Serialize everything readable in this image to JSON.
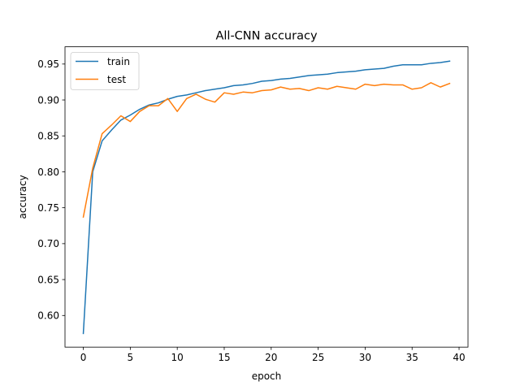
{
  "chart_data": {
    "type": "line",
    "title": "All-CNN accuracy",
    "xlabel": "epoch",
    "ylabel": "accuracy",
    "xlim": [
      -1.95,
      40.95
    ],
    "ylim": [
      0.556,
      0.974
    ],
    "xticks": [
      0,
      5,
      10,
      15,
      20,
      25,
      30,
      35,
      40
    ],
    "yticks": [
      0.6,
      0.65,
      0.7,
      0.75,
      0.8,
      0.85,
      0.9,
      0.95
    ],
    "ytick_labels": [
      "0.60",
      "0.65",
      "0.70",
      "0.75",
      "0.80",
      "0.85",
      "0.90",
      "0.95"
    ],
    "grid": false,
    "legend": "top-left",
    "x": [
      0,
      1,
      2,
      3,
      4,
      5,
      6,
      7,
      8,
      9,
      10,
      11,
      12,
      13,
      14,
      15,
      16,
      17,
      18,
      19,
      20,
      21,
      22,
      23,
      24,
      25,
      26,
      27,
      28,
      29,
      30,
      31,
      32,
      33,
      34,
      35,
      36,
      37,
      38,
      39
    ],
    "series": [
      {
        "name": "train",
        "color": "#1f77b4",
        "values": [
          0.575,
          0.8,
          0.843,
          0.858,
          0.872,
          0.879,
          0.887,
          0.893,
          0.896,
          0.901,
          0.905,
          0.907,
          0.91,
          0.913,
          0.915,
          0.917,
          0.92,
          0.921,
          0.923,
          0.926,
          0.927,
          0.929,
          0.93,
          0.932,
          0.934,
          0.935,
          0.936,
          0.938,
          0.939,
          0.94,
          0.942,
          0.943,
          0.944,
          0.947,
          0.949,
          0.949,
          0.949,
          0.951,
          0.952,
          0.954
        ]
      },
      {
        "name": "test",
        "color": "#ff7f0e",
        "values": [
          0.737,
          0.805,
          0.853,
          0.865,
          0.878,
          0.87,
          0.884,
          0.892,
          0.892,
          0.902,
          0.884,
          0.902,
          0.908,
          0.901,
          0.897,
          0.91,
          0.908,
          0.911,
          0.91,
          0.913,
          0.914,
          0.918,
          0.915,
          0.916,
          0.913,
          0.917,
          0.915,
          0.919,
          0.917,
          0.915,
          0.922,
          0.92,
          0.922,
          0.921,
          0.921,
          0.915,
          0.917,
          0.924,
          0.918,
          0.923
        ]
      }
    ]
  }
}
